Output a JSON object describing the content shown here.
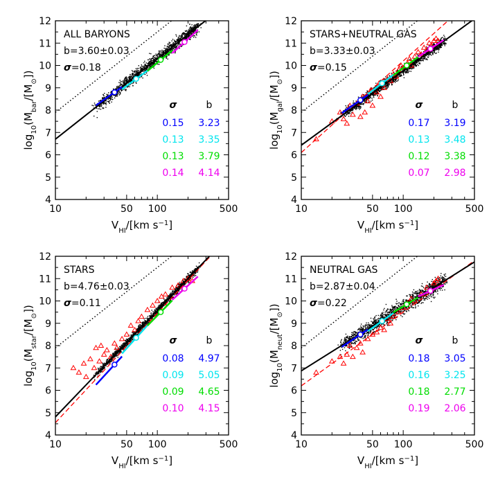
{
  "chart_data": [
    {
      "type": "scatter",
      "title": "ALL BARYONS",
      "b_text": "b=3.60±0.03",
      "sigma_text": "=0.18",
      "ylabel_sub": "bar",
      "xscale": "log",
      "xlim": [
        10,
        500
      ],
      "ylim": [
        4,
        12
      ],
      "fit": {
        "slope": 3.6,
        "intercept": 3.1
      },
      "dotted": {
        "slope": 3.6,
        "intercept": 4.3
      },
      "red_fit": null,
      "black_cloud": {
        "x_range": [
          25,
          250
        ],
        "scatter": 0.18
      },
      "segments": [
        {
          "color": "#0000ff",
          "x_range": [
            25,
            45
          ],
          "sigma": "0.15",
          "b": "3.23"
        },
        {
          "color": "#00e5ee",
          "x_range": [
            45,
            80
          ],
          "sigma": "0.13",
          "b": "3.35"
        },
        {
          "color": "#00dd00",
          "x_range": [
            80,
            140
          ],
          "sigma": "0.13",
          "b": "3.79"
        },
        {
          "color": "#ee00ee",
          "x_range": [
            140,
            250
          ],
          "sigma": "0.14",
          "b": "4.14"
        }
      ],
      "centers": [
        {
          "x": 38,
          "y": 8.8
        },
        {
          "x": 62,
          "y": 9.4
        },
        {
          "x": 108,
          "y": 10.25
        },
        {
          "x": 185,
          "y": 11.05
        }
      ],
      "red_points": [],
      "table_header": [
        "σ",
        "b"
      ],
      "xtick_labels": [
        "10",
        "50",
        "100",
        "500"
      ],
      "ytick_labels": [
        "4",
        "5",
        "6",
        "7",
        "8",
        "9",
        "10",
        "11",
        "12"
      ],
      "xlabel": "V_HI/[km s^-1]"
    },
    {
      "type": "scatter",
      "title": "STARS+NEUTRAL GAS",
      "b_text": "b=3.33±0.03",
      "sigma_text": "=0.15",
      "ylabel_sub": "gal",
      "xscale": "log",
      "xlim": [
        10,
        500
      ],
      "ylim": [
        4,
        12
      ],
      "fit": {
        "slope": 3.33,
        "intercept": 3.1
      },
      "dotted": {
        "slope": 3.6,
        "intercept": 4.3
      },
      "red_fit": {
        "slope": 4.1,
        "intercept": 2.0
      },
      "black_cloud": {
        "x_range": [
          25,
          250
        ],
        "scatter": 0.15
      },
      "segments": [
        {
          "color": "#0000ff",
          "x_range": [
            25,
            45
          ],
          "sigma": "0.17",
          "b": "3.19"
        },
        {
          "color": "#00e5ee",
          "x_range": [
            45,
            80
          ],
          "sigma": "0.13",
          "b": "3.48"
        },
        {
          "color": "#00dd00",
          "x_range": [
            80,
            140
          ],
          "sigma": "0.12",
          "b": "3.38"
        },
        {
          "color": "#ee00ee",
          "x_range": [
            140,
            250
          ],
          "sigma": "0.07",
          "b": "2.98"
        }
      ],
      "centers": [
        {
          "x": 38,
          "y": 8.45
        },
        {
          "x": 62,
          "y": 9.2
        },
        {
          "x": 108,
          "y": 10.0
        },
        {
          "x": 185,
          "y": 10.75
        }
      ],
      "red_points": [
        [
          14,
          6.7
        ],
        [
          20,
          7.5
        ],
        [
          24,
          7.9
        ],
        [
          26,
          7.6
        ],
        [
          28,
          7.4
        ],
        [
          30,
          8.2
        ],
        [
          32,
          7.8
        ],
        [
          35,
          8.3
        ],
        [
          38,
          7.7
        ],
        [
          40,
          8.6
        ],
        [
          42,
          7.9
        ],
        [
          45,
          8.4
        ],
        [
          48,
          8.9
        ],
        [
          50,
          8.2
        ],
        [
          55,
          8.8
        ],
        [
          58,
          9.2
        ],
        [
          60,
          8.6
        ],
        [
          65,
          9.0
        ],
        [
          70,
          9.4
        ],
        [
          75,
          9.3
        ],
        [
          80,
          9.6
        ],
        [
          85,
          9.5
        ],
        [
          90,
          9.8
        ],
        [
          95,
          10.0
        ],
        [
          100,
          9.9
        ],
        [
          110,
          10.1
        ],
        [
          115,
          10.3
        ],
        [
          120,
          10.0
        ],
        [
          130,
          10.4
        ],
        [
          140,
          10.6
        ],
        [
          150,
          10.5
        ],
        [
          160,
          10.8
        ],
        [
          170,
          10.7
        ],
        [
          180,
          11.0
        ],
        [
          190,
          10.9
        ],
        [
          200,
          11.1
        ],
        [
          210,
          11.2
        ],
        [
          220,
          11.1
        ]
      ],
      "table_header": [
        "σ",
        "b"
      ],
      "xtick_labels": [
        "10",
        "50",
        "100",
        "500"
      ],
      "ytick_labels": [
        "4",
        "5",
        "6",
        "7",
        "8",
        "9",
        "10",
        "11",
        "12"
      ],
      "xlabel": "V_HI/[km s^-1]"
    },
    {
      "type": "scatter",
      "title": "STARS",
      "b_text": "b=4.76±0.03",
      "sigma_text": "=0.11",
      "ylabel_sub": "star",
      "xscale": "log",
      "xlim": [
        10,
        500
      ],
      "ylim": [
        4,
        12
      ],
      "fit": {
        "slope": 4.76,
        "intercept": 0.05
      },
      "dotted": {
        "slope": 3.6,
        "intercept": 4.3
      },
      "red_fit": {
        "slope": 4.9,
        "intercept": -0.35
      },
      "black_cloud": {
        "x_range": [
          25,
          250
        ],
        "scatter": 0.11
      },
      "segments": [
        {
          "color": "#0000ff",
          "x_range": [
            25,
            45
          ],
          "sigma": "0.08",
          "b": "4.97"
        },
        {
          "color": "#00e5ee",
          "x_range": [
            45,
            80
          ],
          "sigma": "0.09",
          "b": "5.05"
        },
        {
          "color": "#00dd00",
          "x_range": [
            80,
            140
          ],
          "sigma": "0.09",
          "b": "4.65"
        },
        {
          "color": "#ee00ee",
          "x_range": [
            140,
            250
          ],
          "sigma": "0.10",
          "b": "4.15"
        }
      ],
      "centers": [
        {
          "x": 38,
          "y": 7.15
        },
        {
          "x": 62,
          "y": 8.35
        },
        {
          "x": 108,
          "y": 9.5
        },
        {
          "x": 185,
          "y": 10.55
        }
      ],
      "red_points": [
        [
          15,
          7.0
        ],
        [
          17,
          6.8
        ],
        [
          19,
          7.2
        ],
        [
          20,
          6.6
        ],
        [
          22,
          7.4
        ],
        [
          24,
          7.0
        ],
        [
          25,
          7.9
        ],
        [
          27,
          7.3
        ],
        [
          28,
          8.0
        ],
        [
          30,
          7.6
        ],
        [
          32,
          7.8
        ],
        [
          35,
          7.5
        ],
        [
          38,
          8.1
        ],
        [
          40,
          7.9
        ],
        [
          45,
          8.3
        ],
        [
          50,
          8.5
        ],
        [
          55,
          8.9
        ],
        [
          60,
          8.7
        ],
        [
          65,
          9.1
        ],
        [
          70,
          9.3
        ],
        [
          80,
          9.6
        ],
        [
          90,
          9.8
        ],
        [
          100,
          10.0
        ],
        [
          110,
          10.2
        ],
        [
          120,
          10.3
        ],
        [
          140,
          10.6
        ],
        [
          160,
          10.7
        ],
        [
          180,
          10.9
        ],
        [
          200,
          11.0
        ],
        [
          220,
          10.9
        ]
      ],
      "table_header": [
        "σ",
        "b"
      ],
      "xtick_labels": [
        "10",
        "50",
        "100",
        "500"
      ],
      "ytick_labels": [
        "4",
        "5",
        "6",
        "7",
        "8",
        "9",
        "10",
        "11",
        "12"
      ],
      "xlabel": "V_HI/[km s^-1]"
    },
    {
      "type": "scatter",
      "title": "NEUTRAL GAS",
      "b_text": "b=2.87±0.04",
      "sigma_text": "=0.22",
      "ylabel_sub": "neut",
      "xscale": "log",
      "xlim": [
        10,
        500
      ],
      "ylim": [
        4,
        12
      ],
      "fit": {
        "slope": 2.87,
        "intercept": 4.0
      },
      "dotted": {
        "slope": 3.6,
        "intercept": 4.3
      },
      "red_fit": {
        "slope": 3.3,
        "intercept": 2.9
      },
      "black_cloud": {
        "x_range": [
          25,
          250
        ],
        "scatter": 0.22
      },
      "segments": [
        {
          "color": "#0000ff",
          "x_range": [
            25,
            45
          ],
          "sigma": "0.18",
          "b": "3.05"
        },
        {
          "color": "#00e5ee",
          "x_range": [
            45,
            80
          ],
          "sigma": "0.16",
          "b": "3.25"
        },
        {
          "color": "#00dd00",
          "x_range": [
            80,
            140
          ],
          "sigma": "0.18",
          "b": "2.77"
        },
        {
          "color": "#ee00ee",
          "x_range": [
            140,
            250
          ],
          "sigma": "0.19",
          "b": "2.06"
        }
      ],
      "centers": [
        {
          "x": 38,
          "y": 8.5
        },
        {
          "x": 62,
          "y": 9.1
        },
        {
          "x": 108,
          "y": 9.85
        },
        {
          "x": 185,
          "y": 10.45
        }
      ],
      "red_points": [
        [
          14,
          6.8
        ],
        [
          20,
          7.3
        ],
        [
          24,
          7.5
        ],
        [
          26,
          7.2
        ],
        [
          28,
          7.6
        ],
        [
          30,
          8.0
        ],
        [
          32,
          7.5
        ],
        [
          35,
          7.9
        ],
        [
          38,
          8.1
        ],
        [
          40,
          7.7
        ],
        [
          45,
          8.3
        ],
        [
          50,
          8.5
        ],
        [
          55,
          8.6
        ],
        [
          60,
          8.8
        ],
        [
          65,
          8.7
        ],
        [
          70,
          9.2
        ],
        [
          75,
          9.0
        ],
        [
          80,
          9.3
        ],
        [
          90,
          9.5
        ],
        [
          100,
          9.7
        ],
        [
          110,
          9.9
        ],
        [
          120,
          10.1
        ],
        [
          130,
          10.0
        ],
        [
          150,
          10.3
        ],
        [
          170,
          10.6
        ],
        [
          200,
          10.8
        ],
        [
          210,
          10.9
        ],
        [
          220,
          11.0
        ]
      ],
      "table_header": [
        "σ",
        "b"
      ],
      "xtick_labels": [
        "10",
        "50",
        "100",
        "500"
      ],
      "ytick_labels": [
        "4",
        "5",
        "6",
        "7",
        "8",
        "9",
        "10",
        "11",
        "12"
      ],
      "xlabel": "V_HI/[km s^-1]"
    }
  ]
}
